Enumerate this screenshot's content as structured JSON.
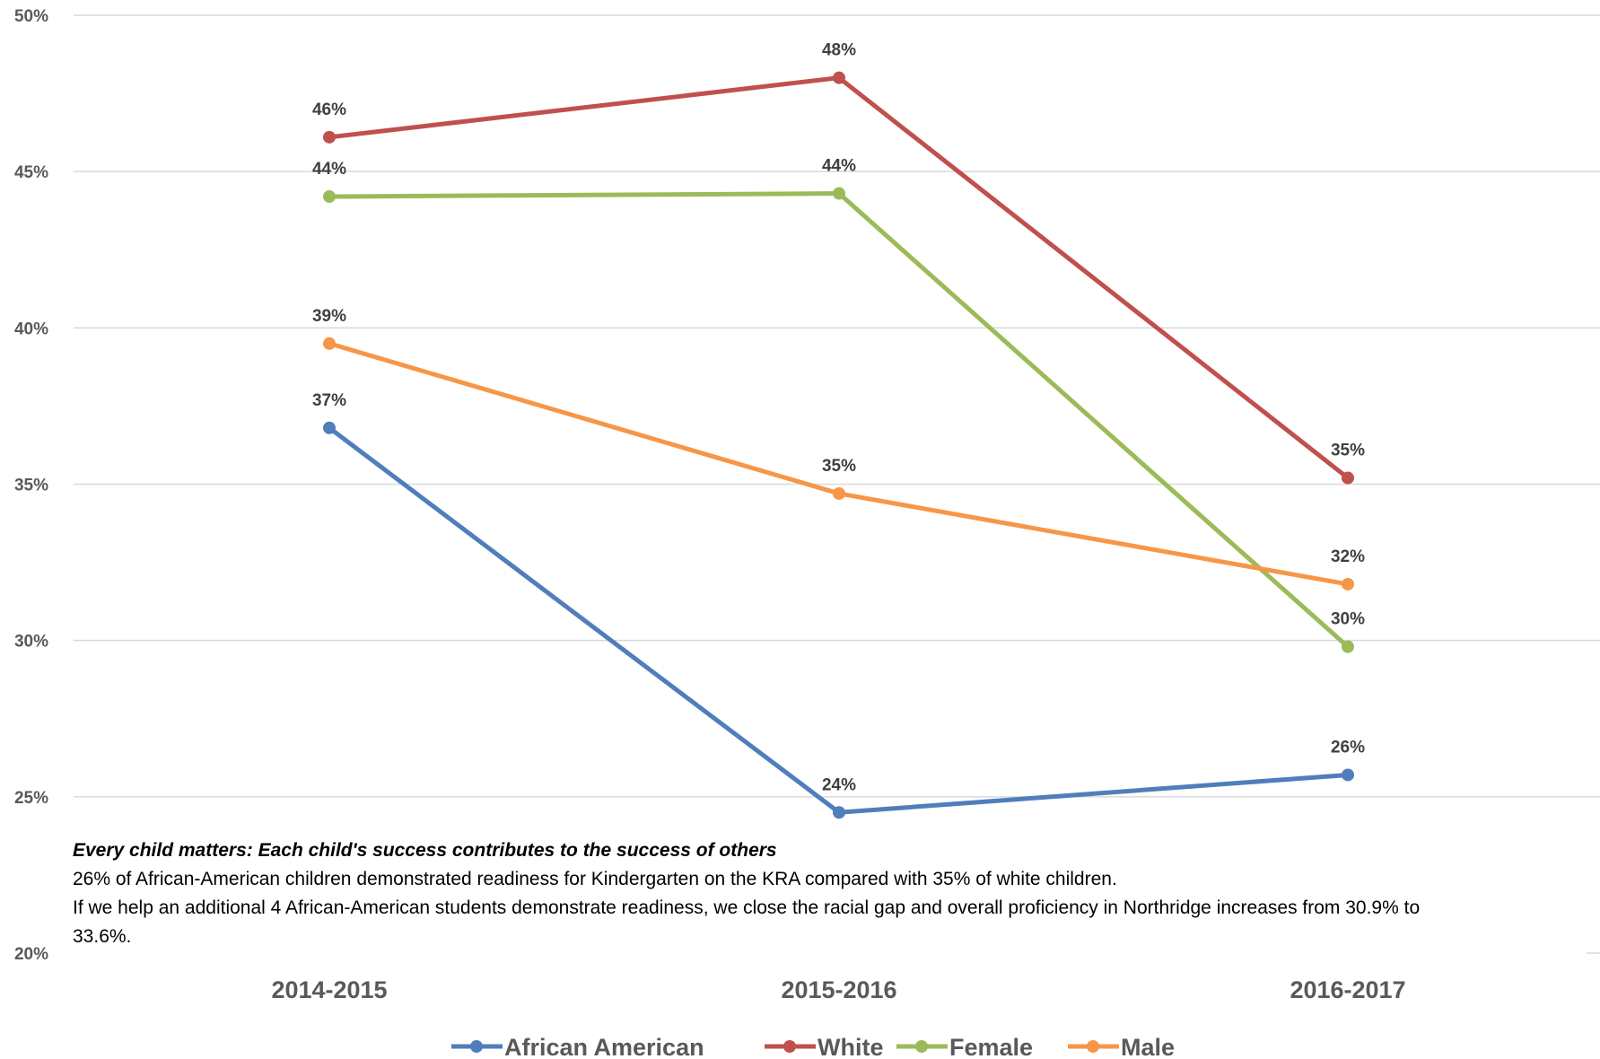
{
  "chart_data": {
    "type": "line",
    "categories": [
      "2014-2015",
      "2015-2016",
      "2016-2017"
    ],
    "ylim": [
      0.2,
      0.5
    ],
    "yticks": [
      0.2,
      0.25,
      0.3,
      0.35,
      0.4,
      0.45,
      0.5
    ],
    "ytick_labels": [
      "20%",
      "25%",
      "30%",
      "35%",
      "40%",
      "45%",
      "50%"
    ],
    "grid": true,
    "legend_position": "bottom",
    "series": [
      {
        "name": "African American",
        "color": "#4F7EBB",
        "values": [
          0.368,
          0.245,
          0.257
        ],
        "labels": [
          "37%",
          "24%",
          "26%"
        ]
      },
      {
        "name": "White",
        "color": "#C0504D",
        "values": [
          0.461,
          0.48,
          0.352
        ],
        "labels": [
          "46%",
          "48%",
          "35%"
        ]
      },
      {
        "name": "Female",
        "color": "#9BBB59",
        "values": [
          0.442,
          0.443,
          0.298
        ],
        "labels": [
          "44%",
          "44%",
          "30%"
        ]
      },
      {
        "name": "Male",
        "color": "#F79646",
        "values": [
          0.395,
          0.347,
          0.318
        ],
        "labels": [
          "39%",
          "35%",
          "32%"
        ]
      }
    ]
  },
  "annotation": {
    "title": "Every child matters: Each child's success contributes to the success of others",
    "line1": "26% of African-American children demonstrated readiness for Kindergarten on the KRA compared with 35% of white children.",
    "line2": "If we help an additional 4 African-American students demonstrate readiness, we close the racial gap and overall proficiency in Northridge increases from 30.9% to 33.6%."
  }
}
